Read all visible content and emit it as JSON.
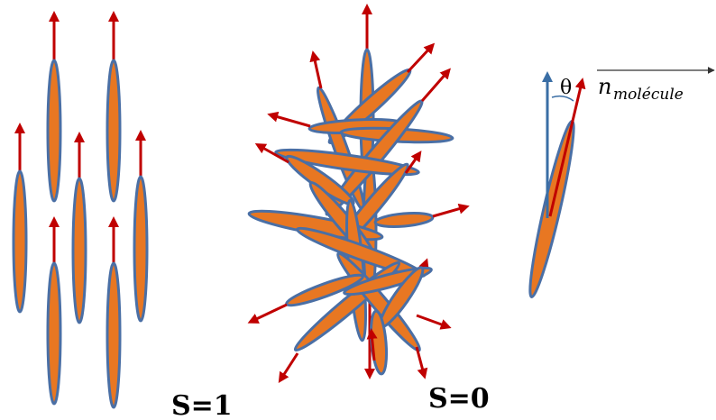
{
  "labels": {
    "ordered": "S=1",
    "disordered": "S=0",
    "angle": "θ",
    "vector_main": "n",
    "vector_sub": "molécule"
  },
  "colors": {
    "molecule_fill": "#e87722",
    "molecule_outline": "#4a6fa5",
    "director_arrow": "#c00000",
    "reference_arrow": "#3a6ea5"
  }
}
